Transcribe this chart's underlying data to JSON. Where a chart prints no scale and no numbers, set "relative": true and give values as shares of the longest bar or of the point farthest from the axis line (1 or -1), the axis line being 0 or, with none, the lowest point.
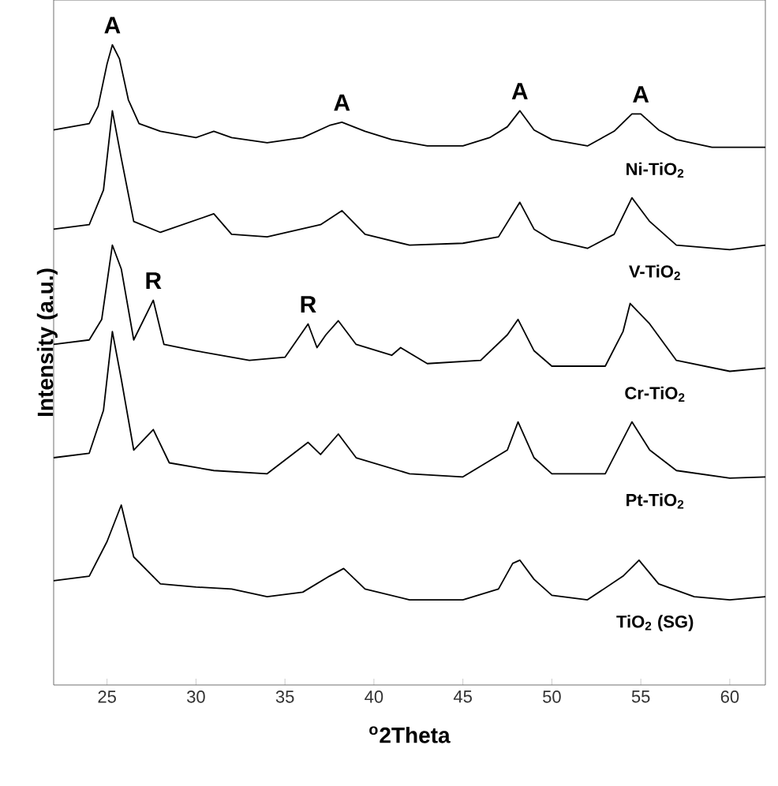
{
  "chart_data": {
    "type": "line",
    "relative": true,
    "xlabel": "$^{o}$2Theta",
    "ylabel": "Intensity (a.u.)",
    "xlim": [
      22,
      62
    ],
    "xticks": [
      25,
      30,
      35,
      40,
      45,
      50,
      55,
      60
    ],
    "series": [
      {
        "name": "Ni-TiO$_{2}$",
        "color": "#000000",
        "x": [
          22,
          23,
          24,
          24.5,
          25,
          25.3,
          25.7,
          26.2,
          26.8,
          28,
          30,
          31,
          32,
          34,
          36,
          37.5,
          38.2,
          39.5,
          41,
          43,
          45,
          46.5,
          47.5,
          48.2,
          49,
          50,
          52,
          53.5,
          54.5,
          55,
          56,
          57,
          59,
          62
        ],
        "values": [
          0.867,
          0.872,
          0.877,
          0.904,
          0.97,
          1.0,
          0.978,
          0.914,
          0.877,
          0.865,
          0.855,
          0.865,
          0.855,
          0.847,
          0.855,
          0.874,
          0.879,
          0.865,
          0.852,
          0.842,
          0.842,
          0.855,
          0.872,
          0.897,
          0.867,
          0.852,
          0.842,
          0.865,
          0.892,
          0.892,
          0.867,
          0.852,
          0.84,
          0.84
        ]
      },
      {
        "name": "V-TiO$_{2}$",
        "color": "#000000",
        "x": [
          22,
          24,
          24.8,
          25.3,
          25.8,
          26.5,
          28,
          31,
          32,
          34,
          37,
          38.2,
          39.5,
          42,
          45,
          47,
          48.2,
          49,
          50,
          52,
          53.5,
          54.5,
          55.5,
          57,
          60,
          62
        ],
        "values": [
          0.712,
          0.719,
          0.773,
          0.897,
          0.823,
          0.724,
          0.707,
          0.736,
          0.704,
          0.7,
          0.719,
          0.741,
          0.704,
          0.687,
          0.69,
          0.7,
          0.754,
          0.712,
          0.695,
          0.682,
          0.704,
          0.761,
          0.724,
          0.687,
          0.68,
          0.687
        ]
      },
      {
        "name": "Cr-TiO$_{2}$",
        "color": "#000000",
        "x": [
          22,
          24,
          24.7,
          25.3,
          25.8,
          26.5,
          27.6,
          28.2,
          30,
          33,
          35,
          36.3,
          36.8,
          37.3,
          38,
          39,
          41,
          41.5,
          43,
          46,
          47.5,
          48.1,
          49,
          50,
          53,
          54,
          54.4,
          55.5,
          57,
          60,
          62
        ],
        "values": [
          0.532,
          0.539,
          0.571,
          0.687,
          0.65,
          0.539,
          0.601,
          0.532,
          0.522,
          0.507,
          0.512,
          0.564,
          0.527,
          0.547,
          0.569,
          0.532,
          0.515,
          0.527,
          0.502,
          0.507,
          0.547,
          0.571,
          0.522,
          0.498,
          0.498,
          0.552,
          0.596,
          0.564,
          0.507,
          0.49,
          0.495
        ]
      },
      {
        "name": "Pt-TiO$_{2}$",
        "color": "#000000",
        "x": [
          22,
          24,
          24.8,
          25.3,
          25.8,
          26.5,
          27.6,
          28.5,
          31,
          34,
          36.3,
          37,
          38,
          39,
          42,
          45,
          47.5,
          48.1,
          49,
          50,
          53,
          54.5,
          55.5,
          57,
          60,
          62
        ],
        "values": [
          0.355,
          0.362,
          0.429,
          0.552,
          0.478,
          0.367,
          0.399,
          0.347,
          0.335,
          0.33,
          0.379,
          0.36,
          0.392,
          0.355,
          0.33,
          0.325,
          0.367,
          0.411,
          0.355,
          0.33,
          0.33,
          0.411,
          0.367,
          0.335,
          0.323,
          0.325
        ]
      },
      {
        "name": "TiO$_{2}$ (SG)",
        "color": "#000000",
        "x": [
          22,
          24,
          25,
          25.8,
          26.5,
          28,
          30,
          32,
          34,
          36,
          37.5,
          38.3,
          39.5,
          42,
          45,
          47,
          47.8,
          48.2,
          49,
          50,
          52,
          54,
          54.9,
          56,
          58,
          60,
          62
        ],
        "values": [
          0.163,
          0.17,
          0.224,
          0.281,
          0.2,
          0.158,
          0.153,
          0.15,
          0.138,
          0.145,
          0.17,
          0.182,
          0.15,
          0.133,
          0.133,
          0.15,
          0.19,
          0.195,
          0.165,
          0.14,
          0.133,
          0.17,
          0.195,
          0.158,
          0.138,
          0.133,
          0.138
        ]
      }
    ],
    "annotations": [
      {
        "text": "A",
        "x": 25.3,
        "y": 1.0
      },
      {
        "text": "A",
        "x": 38.2,
        "y": 0.879
      },
      {
        "text": "A",
        "x": 48.2,
        "y": 0.897
      },
      {
        "text": "A",
        "x": 55,
        "y": 0.892
      },
      {
        "text": "R",
        "x": 27.6,
        "y": 0.601
      },
      {
        "text": "R",
        "x": 36.3,
        "y": 0.564
      }
    ]
  }
}
